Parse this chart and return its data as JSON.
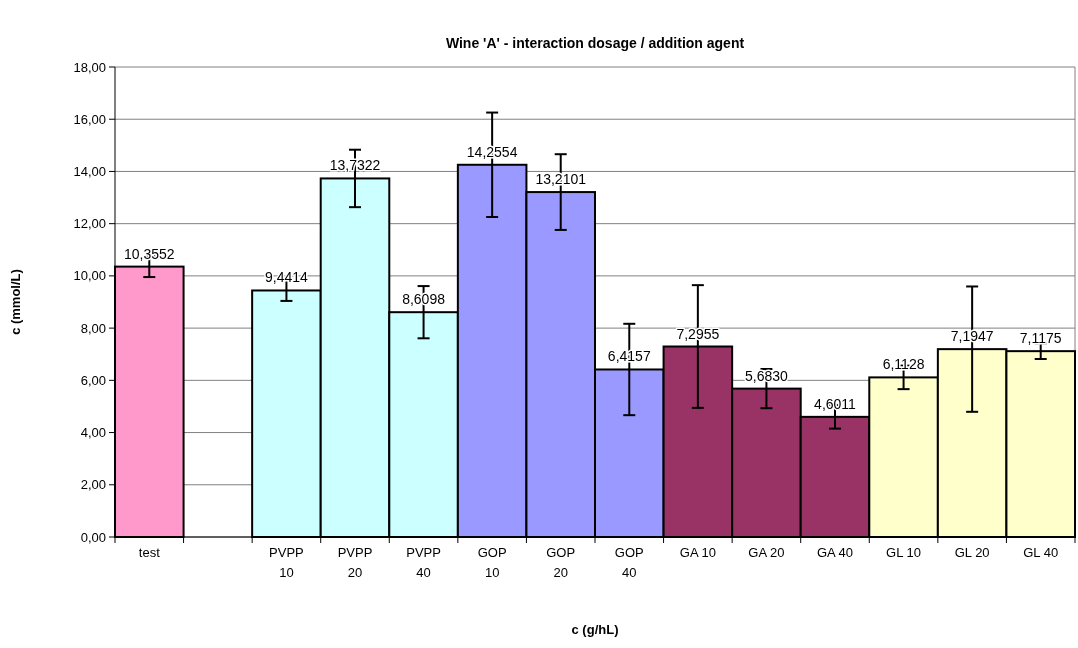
{
  "chart_data": {
    "type": "bar",
    "title": "Wine 'A' - interaction dosage / addition agent",
    "xlabel": "c (g/hL)",
    "ylabel": "c (mmol/L)",
    "categories": [
      "test",
      null,
      "PVPP 10",
      "PVPP 20",
      "PVPP 40",
      "GOP 10",
      "GOP 20",
      "GOP 40",
      "GA 10",
      "GA 20",
      "GA 40",
      "GL 10",
      "GL 20",
      "GL 40"
    ],
    "values": [
      10.3552,
      null,
      9.4414,
      13.7322,
      8.6098,
      14.2554,
      13.2101,
      6.4157,
      7.2955,
      5.683,
      4.6011,
      6.1128,
      7.1947,
      7.1175
    ],
    "value_labels": [
      "10,3552",
      null,
      "9,4414",
      "13,7322",
      "8,6098",
      "14,2554",
      "13,2101",
      "6,4157",
      "7,2955",
      "5,6830",
      "4,6011",
      "6,1128",
      "7,1947",
      "7,1175"
    ],
    "errors": [
      0.4,
      null,
      0.4,
      1.1,
      1.0,
      2.0,
      1.45,
      1.75,
      2.35,
      0.75,
      0.45,
      0.45,
      2.4,
      0.3
    ],
    "colors": [
      "#ff99cc",
      "#ffffff",
      "#ccffff",
      "#ccffff",
      "#ccffff",
      "#9999ff",
      "#9999ff",
      "#9999ff",
      "#993366",
      "#993366",
      "#993366",
      "#ffffcc",
      "#ffffcc",
      "#ffffcc"
    ],
    "ylim": [
      0,
      18
    ],
    "yticks": [
      {
        "value": 0,
        "label": "0,00"
      },
      {
        "value": 2,
        "label": "2,00"
      },
      {
        "value": 4,
        "label": "4,00"
      },
      {
        "value": 6,
        "label": "6,00"
      },
      {
        "value": 8,
        "label": "8,00"
      },
      {
        "value": 10,
        "label": "10,00"
      },
      {
        "value": 12,
        "label": "12,00"
      },
      {
        "value": 14,
        "label": "14,00"
      },
      {
        "value": 16,
        "label": "16,00"
      },
      {
        "value": 18,
        "label": "18,00"
      }
    ],
    "grid": "y"
  }
}
